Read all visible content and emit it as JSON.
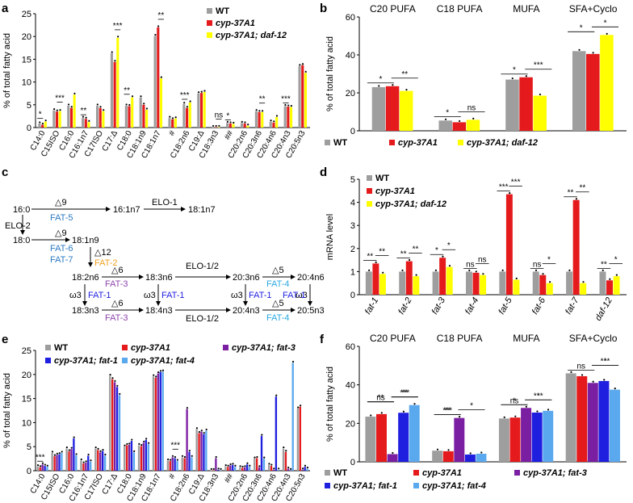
{
  "colors": {
    "wt": "#9e9e9e",
    "cyp": "#e41a1c",
    "daf12": "#ffff00",
    "fat3": "#7b1fa2",
    "fat1": "#1f1fe0",
    "fat4": "#5aa9ee",
    "fat_blue": "#2b79c2",
    "fat_orange": "#f0a020",
    "fat_purple": "#8e44ad",
    "fat_cyan": "#29a8e0"
  },
  "panel_letters": [
    "a",
    "b",
    "c",
    "d",
    "e",
    "f"
  ],
  "chart_data": [
    {
      "panel": "a",
      "type": "bar",
      "ylabel": "% of total fatty acid",
      "ylim": [
        0,
        25
      ],
      "yticks": [
        "0",
        "5",
        "10",
        "15",
        "20",
        "25"
      ],
      "categories": [
        "C14:0",
        "C15ISO",
        "C16:0",
        "C16:1n7",
        "C17ISO",
        "C17:Δ",
        "C18:0",
        "C18:1n9",
        "C18:1n7",
        "#",
        "C18:2n6",
        "C19:Δ",
        "C18:3n3",
        "##",
        "C20:2n6",
        "C20:3n6",
        "C20:4n6",
        "C20:4n3",
        "C20:5n3"
      ],
      "series": [
        {
          "name": "WT",
          "color": "#9e9e9e",
          "values": [
            0.9,
            3.8,
            4.8,
            2.1,
            4.8,
            16.3,
            4.8,
            6.6,
            20.1,
            2.1,
            5.2,
            7.5,
            0.1,
            1.0,
            1.0,
            3.6,
            1.3,
            4.7,
            13.5
          ]
        },
        {
          "name": "cyp-37A1",
          "color": "#e41a1c",
          "values": [
            0.6,
            3.5,
            4.3,
            1.9,
            4.3,
            14.4,
            4.7,
            5.0,
            22.0,
            1.8,
            4.3,
            7.6,
            0.1,
            0.9,
            0.9,
            3.4,
            1.1,
            4.6,
            13.7
          ]
        },
        {
          "name": "cyp-37A1; daf-12",
          "color": "#ffff00",
          "values": [
            1.3,
            3.6,
            7.2,
            1.2,
            3.6,
            19.7,
            6.6,
            3.9,
            10.8,
            2.0,
            5.5,
            7.8,
            0.1,
            0.8,
            0.4,
            3.4,
            2.3,
            4.5,
            12.0
          ]
        }
      ],
      "legend": [
        "WT",
        "cyp-37A1",
        "cyp-37A1; daf-12"
      ],
      "annotations": [
        "*",
        "***",
        "**",
        "***",
        "**",
        "**",
        "***",
        "ns",
        "*",
        "**",
        "***"
      ]
    },
    {
      "panel": "b",
      "type": "bar",
      "ylabel": "% of total fatty acid",
      "ylim": [
        0,
        60
      ],
      "yticks": [
        "0",
        "20",
        "40",
        "60"
      ],
      "categories": [
        "C20 PUFA",
        "C18 PUFA",
        "MUFA",
        "SFA+Cyclo"
      ],
      "series": [
        {
          "name": "WT",
          "color": "#9e9e9e",
          "values": [
            23.0,
            5.4,
            27.0,
            42.0
          ]
        },
        {
          "name": "cyp-37A1",
          "color": "#e41a1c",
          "values": [
            23.5,
            4.5,
            28.2,
            40.5
          ]
        },
        {
          "name": "cyp-37A1; daf-12",
          "color": "#ffff00",
          "values": [
            21.0,
            5.8,
            18.5,
            50.5
          ]
        }
      ],
      "legend": [
        "WT",
        "cyp-37A1",
        "cyp-37A1; daf-12"
      ],
      "annotations": [
        "*",
        "**",
        "*",
        "ns",
        "*",
        "***",
        "*",
        "*"
      ]
    },
    {
      "panel": "d",
      "type": "bar",
      "ylabel": "mRNA level",
      "ylim": [
        0,
        5
      ],
      "yticks": [
        "0",
        "1",
        "2",
        "3",
        "4",
        "5"
      ],
      "categories": [
        "fat-1",
        "fat-2",
        "fat-3",
        "fat-4",
        "fat-5",
        "fat-6",
        "fat-7",
        "daf-12"
      ],
      "series": [
        {
          "name": "WT",
          "color": "#9e9e9e",
          "values": [
            1.0,
            1.0,
            1.0,
            1.0,
            1.0,
            1.0,
            1.0,
            1.0
          ]
        },
        {
          "name": "cyp-37A1",
          "color": "#e41a1c",
          "values": [
            1.35,
            1.45,
            1.6,
            0.95,
            4.35,
            0.85,
            4.1,
            0.62
          ]
        },
        {
          "name": "cyp-37A1; daf-12",
          "color": "#ffff00",
          "values": [
            0.9,
            0.8,
            1.2,
            0.85,
            0.65,
            0.5,
            0.5,
            0.8
          ]
        }
      ],
      "legend": [
        "WT",
        "cyp-37A1",
        "cyp-37A1; daf-12"
      ],
      "annotations": [
        "**",
        "**",
        "**",
        "**",
        "*",
        "*",
        "ns",
        "ns",
        "***",
        "***",
        "ns",
        "*",
        "**",
        "**",
        "**",
        "*"
      ]
    },
    {
      "panel": "e",
      "type": "bar",
      "ylabel": "% of total fatty acid",
      "ylim": [
        0,
        25
      ],
      "yticks": [
        "0",
        "5",
        "10",
        "15",
        "20",
        "25"
      ],
      "categories": [
        "C14:0",
        "C15ISO",
        "C16:0",
        "C16:1n7",
        "C17ISO",
        "C17:Δ",
        "C18:0",
        "C18:1n9",
        "C18:1n7",
        "#",
        "C18:2n6",
        "C19:Δ",
        "C18:3n3",
        "##",
        "C20:2n6",
        "C20:3n6",
        "C20:4n6",
        "C20:4n3",
        "C20:5n3"
      ],
      "series": [
        {
          "name": "WT",
          "color": "#9e9e9e",
          "values": [
            0.9,
            3.7,
            4.6,
            2.1,
            4.6,
            19.7,
            5.0,
            5.3,
            19.6,
            2.1,
            2.8,
            8.6,
            0.1,
            0.9,
            0.7,
            2.5,
            1.2,
            4.6,
            12.9
          ]
        },
        {
          "name": "cyp-37A1",
          "color": "#e41a1c",
          "values": [
            0.7,
            3.0,
            4.0,
            1.5,
            4.3,
            19.0,
            5.3,
            5.1,
            19.3,
            2.0,
            2.6,
            7.8,
            0.1,
            0.8,
            0.6,
            2.6,
            1.0,
            3.9,
            13.3
          ]
        },
        {
          "name": "cyp-37A1; fat-3",
          "color": "#7b1fa2",
          "values": [
            1.3,
            3.3,
            4.5,
            1.7,
            3.8,
            18.4,
            5.4,
            5.8,
            20.2,
            2.8,
            12.8,
            8.1,
            2.6,
            1.1,
            0.7,
            0.7,
            0.2,
            0.4,
            0.2
          ]
        },
        {
          "name": "cyp-37A1; fat-1",
          "color": "#1f1fe0",
          "values": [
            1.0,
            3.4,
            6.7,
            3.1,
            4.1,
            17.4,
            6.2,
            6.4,
            20.5,
            2.6,
            3.9,
            7.6,
            0.2,
            1.2,
            1.3,
            7.2,
            15.4,
            0.1,
            0.8
          ]
        },
        {
          "name": "cyp-37A1; fat-4",
          "color": "#5aa9ee",
          "values": [
            0.8,
            3.7,
            3.2,
            1.9,
            3.1,
            15.7,
            3.8,
            5.5,
            20.6,
            2.0,
            2.8,
            8.3,
            0.1,
            0.8,
            0.8,
            2.5,
            0.2,
            22.4,
            0.4
          ]
        }
      ],
      "legend": [
        "WT",
        "cyp-37A1",
        "cyp-37A1; fat-3",
        "cyp-37A1; fat-1",
        "cyp-37A1; fat-4"
      ],
      "annotations": [
        "***",
        "***"
      ]
    },
    {
      "panel": "f",
      "type": "bar",
      "ylabel": "% of total fatty acid",
      "ylim": [
        0,
        60
      ],
      "yticks": [
        "0",
        "20",
        "40",
        "60"
      ],
      "categories": [
        "C20 PUFA",
        "C18 PUFA",
        "MUFA",
        "SFA+Cyclo"
      ],
      "series": [
        {
          "name": "WT",
          "color": "#9e9e9e",
          "values": [
            23.5,
            5.8,
            22.5,
            46.0
          ]
        },
        {
          "name": "cyp-37A1",
          "color": "#e41a1c",
          "values": [
            24.8,
            5.5,
            23.0,
            44.5
          ]
        },
        {
          "name": "cyp-37A1; fat-3",
          "color": "#7b1fa2",
          "values": [
            4.0,
            22.8,
            28.0,
            41.0
          ]
        },
        {
          "name": "cyp-37A1; fat-1",
          "color": "#1f1fe0",
          "values": [
            25.5,
            3.8,
            25.6,
            42.0
          ]
        },
        {
          "name": "cyp-37A1; fat-4",
          "color": "#5aa9ee",
          "values": [
            29.5,
            4.2,
            26.5,
            37.5
          ]
        }
      ],
      "legend": [
        "WT",
        "cyp-37A1",
        "cyp-37A1; fat-3",
        "cyp-37A1; fat-1",
        "cyp-37A1; fat-4"
      ],
      "annotations": [
        "ns",
        "***",
        "**",
        "**",
        "***",
        "*",
        "**",
        "*",
        "ns",
        "***",
        "*",
        "*",
        "ns",
        "***"
      ]
    }
  ],
  "pathway": {
    "nodes": {
      "n16_0": "16:0",
      "n16_1n7": "16:1n7",
      "n18_1n7": "18:1n7",
      "n18_0": "18:0",
      "n18_1n9": "18:1n9",
      "n18_2n6": "18:2n6",
      "n18_3n6": "18:3n6",
      "n20_3n6": "20:3n6",
      "n20_4n6": "20:4n6",
      "n18_3n3": "18:3n3",
      "n18_4n3": "18:4n3",
      "n20_4n3": "20:4n3",
      "n20_5n3": "20:5n3"
    },
    "labels": {
      "d9": "△9",
      "d12": "△12",
      "d6": "△6",
      "d5": "△5",
      "w3": "ω3",
      "elo1": "ELO-1",
      "elo2": "ELO-2",
      "elo12": "ELO-1/2"
    },
    "enzymes": {
      "fat5": "FAT-5",
      "fat6": "FAT-6",
      "fat7": "FAT-7",
      "fat2": "FAT-2",
      "fat3": "FAT-3",
      "fat1": "FAT-1",
      "fat4": "FAT-4"
    }
  }
}
